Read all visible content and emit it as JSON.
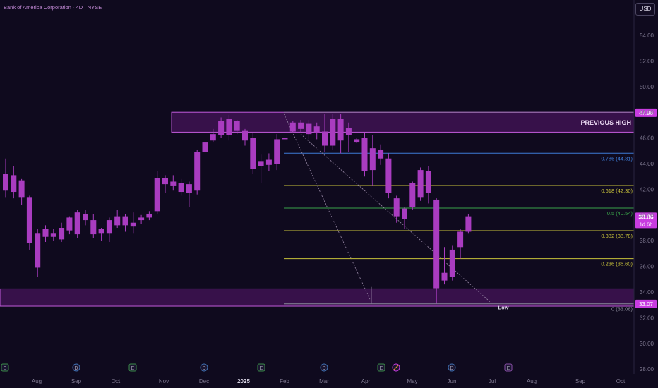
{
  "header": {
    "symbol_title": "Bank of America Corporation · 4D · NYSE",
    "currency": "USD"
  },
  "colors": {
    "background": "#0f0a1e",
    "candle": "#a93cc0",
    "zone_fill": "#5a1770",
    "zone_border": "#c25bdc",
    "price_label": "#c83ce0"
  },
  "chart_data": {
    "type": "candlestick",
    "x_labels": [
      "Aug",
      "Sep",
      "Oct",
      "Nov",
      "Dec",
      "2025",
      "Feb",
      "Mar",
      "Apr",
      "May",
      "Jun",
      "Jul",
      "Aug",
      "Sep",
      "Oct"
    ],
    "y_ticks": [
      "54.00",
      "52.00",
      "50.00",
      "48.00",
      "46.00",
      "44.00",
      "42.00",
      "40.00",
      "38.00",
      "36.00",
      "34.00",
      "32.00",
      "30.00",
      "28.00"
    ],
    "ylim": [
      27.5,
      56.8
    ],
    "candles": [
      {
        "o": 43.2,
        "h": 44.4,
        "l": 41.4,
        "c": 41.9
      },
      {
        "o": 41.8,
        "h": 43.8,
        "l": 41.3,
        "c": 43.1
      },
      {
        "o": 42.7,
        "h": 42.8,
        "l": 40.8,
        "c": 41.4
      },
      {
        "o": 41.4,
        "h": 41.5,
        "l": 37.3,
        "c": 37.8
      },
      {
        "o": 38.6,
        "h": 38.9,
        "l": 35.2,
        "c": 35.9
      },
      {
        "o": 38.3,
        "h": 39.2,
        "l": 37.9,
        "c": 38.9
      },
      {
        "o": 38.6,
        "h": 38.9,
        "l": 38.0,
        "c": 38.3
      },
      {
        "o": 38.1,
        "h": 39.4,
        "l": 37.9,
        "c": 39.0
      },
      {
        "o": 39.8,
        "h": 39.9,
        "l": 38.5,
        "c": 38.8
      },
      {
        "o": 38.5,
        "h": 40.4,
        "l": 38.2,
        "c": 40.2
      },
      {
        "o": 40.1,
        "h": 40.4,
        "l": 39.2,
        "c": 39.6
      },
      {
        "o": 39.6,
        "h": 40.1,
        "l": 38.2,
        "c": 38.5
      },
      {
        "o": 38.6,
        "h": 39.0,
        "l": 38.0,
        "c": 38.9
      },
      {
        "o": 38.6,
        "h": 39.8,
        "l": 37.9,
        "c": 39.6
      },
      {
        "o": 39.2,
        "h": 40.4,
        "l": 39.0,
        "c": 39.9
      },
      {
        "o": 39.9,
        "h": 40.1,
        "l": 38.7,
        "c": 39.2
      },
      {
        "o": 39.1,
        "h": 40.2,
        "l": 38.6,
        "c": 39.4
      },
      {
        "o": 39.6,
        "h": 40.0,
        "l": 39.3,
        "c": 39.8
      },
      {
        "o": 39.8,
        "h": 40.3,
        "l": 39.6,
        "c": 40.1
      },
      {
        "o": 40.3,
        "h": 43.4,
        "l": 40.1,
        "c": 42.9
      },
      {
        "o": 42.9,
        "h": 43.1,
        "l": 41.7,
        "c": 42.4
      },
      {
        "o": 42.6,
        "h": 43.1,
        "l": 41.9,
        "c": 42.3
      },
      {
        "o": 42.5,
        "h": 42.8,
        "l": 41.5,
        "c": 41.8
      },
      {
        "o": 41.7,
        "h": 42.6,
        "l": 40.6,
        "c": 42.4
      },
      {
        "o": 41.9,
        "h": 45.1,
        "l": 41.6,
        "c": 44.9
      },
      {
        "o": 44.9,
        "h": 45.9,
        "l": 44.7,
        "c": 45.7
      },
      {
        "o": 46.3,
        "h": 46.7,
        "l": 45.7,
        "c": 45.8
      },
      {
        "o": 46.2,
        "h": 47.6,
        "l": 46.0,
        "c": 47.3
      },
      {
        "o": 46.2,
        "h": 47.8,
        "l": 45.8,
        "c": 47.5
      },
      {
        "o": 47.3,
        "h": 47.4,
        "l": 46.3,
        "c": 46.6
      },
      {
        "o": 46.6,
        "h": 46.7,
        "l": 45.4,
        "c": 45.8
      },
      {
        "o": 46.0,
        "h": 46.4,
        "l": 43.2,
        "c": 43.6
      },
      {
        "o": 43.8,
        "h": 44.7,
        "l": 42.5,
        "c": 44.2
      },
      {
        "o": 44.3,
        "h": 44.8,
        "l": 43.4,
        "c": 43.9
      },
      {
        "o": 44.0,
        "h": 46.3,
        "l": 43.5,
        "c": 45.9
      },
      {
        "o": 45.9,
        "h": 46.3,
        "l": 45.7,
        "c": 46.0
      },
      {
        "o": 46.5,
        "h": 47.3,
        "l": 46.4,
        "c": 47.2
      },
      {
        "o": 46.7,
        "h": 47.4,
        "l": 46.4,
        "c": 47.2
      },
      {
        "o": 47.1,
        "h": 47.4,
        "l": 45.9,
        "c": 46.3
      },
      {
        "o": 46.4,
        "h": 47.2,
        "l": 45.9,
        "c": 46.9
      },
      {
        "o": 46.5,
        "h": 47.9,
        "l": 44.9,
        "c": 45.4
      },
      {
        "o": 45.4,
        "h": 47.9,
        "l": 45.1,
        "c": 47.5
      },
      {
        "o": 47.5,
        "h": 47.9,
        "l": 44.8,
        "c": 45.8
      },
      {
        "o": 46.8,
        "h": 47.2,
        "l": 44.9,
        "c": 46.2
      },
      {
        "o": 45.9,
        "h": 46.0,
        "l": 45.6,
        "c": 45.7
      },
      {
        "o": 46.0,
        "h": 46.4,
        "l": 43.0,
        "c": 43.4
      },
      {
        "o": 45.2,
        "h": 46.2,
        "l": 42.3,
        "c": 43.5
      },
      {
        "o": 45.1,
        "h": 45.5,
        "l": 43.9,
        "c": 44.4
      },
      {
        "o": 44.4,
        "h": 44.8,
        "l": 41.3,
        "c": 41.7
      },
      {
        "o": 41.3,
        "h": 41.5,
        "l": 39.4,
        "c": 39.9
      },
      {
        "o": 40.5,
        "h": 40.6,
        "l": 38.9,
        "c": 39.7
      },
      {
        "o": 40.6,
        "h": 42.6,
        "l": 40.4,
        "c": 42.5
      },
      {
        "o": 41.4,
        "h": 43.7,
        "l": 41.1,
        "c": 43.5
      },
      {
        "o": 43.4,
        "h": 43.8,
        "l": 40.9,
        "c": 41.7
      },
      {
        "o": 41.2,
        "h": 41.3,
        "l": 33.1,
        "c": 34.3
      },
      {
        "o": 34.9,
        "h": 37.5,
        "l": 34.6,
        "c": 35.5
      },
      {
        "o": 35.2,
        "h": 37.6,
        "l": 34.9,
        "c": 37.3
      },
      {
        "o": 37.5,
        "h": 38.9,
        "l": 36.6,
        "c": 38.7
      },
      {
        "o": 38.7,
        "h": 40.1,
        "l": 38.6,
        "c": 39.9
      }
    ],
    "current_price": {
      "value": 39.86,
      "label": "39.86",
      "timer": "1d 6h"
    },
    "zones": [
      {
        "label": "PREVIOUS HIGH",
        "top": 48.0,
        "bottom": 46.45,
        "price_label": "47.96"
      },
      {
        "label": "",
        "top": 34.25,
        "bottom": 32.9,
        "price_label": "33.07"
      }
    ],
    "fib_levels": [
      {
        "ratio": "0.786",
        "label": "0.786 (44.81)",
        "price": 44.81,
        "color": "#3d7bd6"
      },
      {
        "ratio": "0.618",
        "label": "0.618 (42.30)",
        "price": 42.3,
        "color": "#c8c23a"
      },
      {
        "ratio": "0.5",
        "label": "0.5 (40.54)",
        "price": 40.54,
        "color": "#3aa34a"
      },
      {
        "ratio": "0.382",
        "label": "0.382 (38.78)",
        "price": 38.78,
        "color": "#c8c23a"
      },
      {
        "ratio": "0.236",
        "label": "0.236 (36.60)",
        "price": 36.6,
        "color": "#c8c23a"
      },
      {
        "ratio": "0",
        "label": "0 (33.08)",
        "price": 33.08,
        "color": "#8a8a9a"
      }
    ],
    "low_label": "Low",
    "event_markers": [
      {
        "letter": "E",
        "kind": "earnings"
      },
      {
        "letter": "D",
        "kind": "dividend"
      },
      {
        "letter": "E",
        "kind": "earnings"
      },
      {
        "letter": "D",
        "kind": "dividend"
      },
      {
        "letter": "E",
        "kind": "earnings"
      },
      {
        "letter": "D",
        "kind": "dividend"
      },
      {
        "letter": "E",
        "kind": "earnings"
      },
      {
        "letter": "D",
        "kind": "dividend"
      },
      {
        "letter": "E",
        "kind": "earnings-upcoming"
      }
    ]
  }
}
